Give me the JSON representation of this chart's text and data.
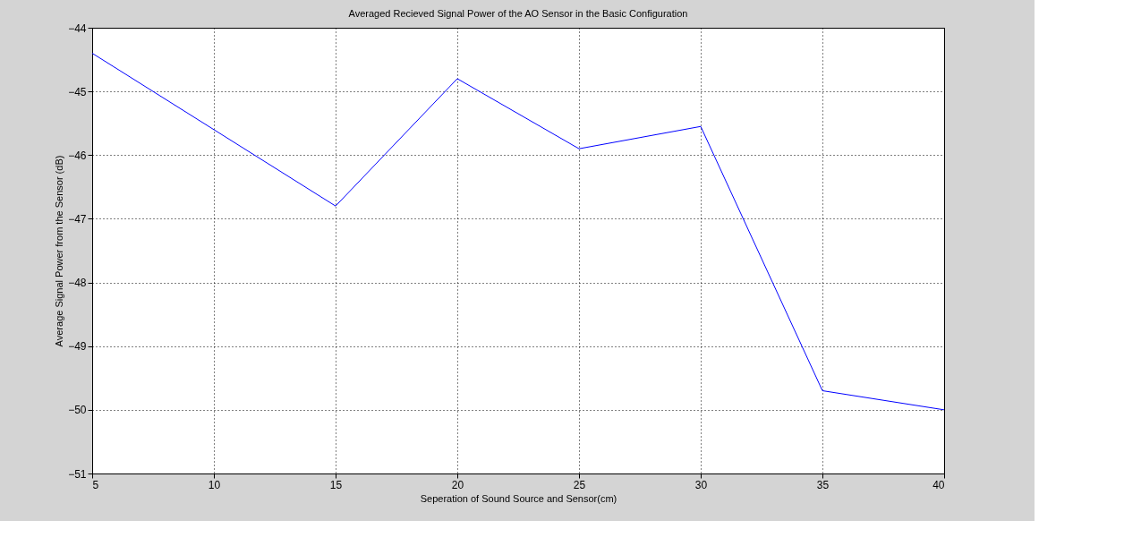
{
  "chart_data": {
    "type": "line",
    "title": "Averaged Recieved Signal Power of the AO Sensor in the Basic Configuration",
    "xlabel": "Seperation of Sound Source and Sensor(cm)",
    "ylabel": "Average Signal Power from the Sensor (dB)",
    "x": [
      5,
      15,
      20,
      25,
      30,
      35,
      40
    ],
    "series": [
      {
        "color": "#0000ff",
        "values": [
          -44.4,
          -46.8,
          -44.8,
          -45.9,
          -45.55,
          -49.7,
          -50.0
        ]
      }
    ],
    "xlim": [
      5,
      40
    ],
    "xticks": [
      5,
      10,
      15,
      20,
      25,
      30,
      35,
      40
    ],
    "ylim": [
      -51,
      -44
    ],
    "yticks": [
      -51,
      -50,
      -49,
      -48,
      -47,
      -46,
      -45,
      -44
    ],
    "grid": true,
    "line_style": "solid",
    "marker": "none"
  }
}
